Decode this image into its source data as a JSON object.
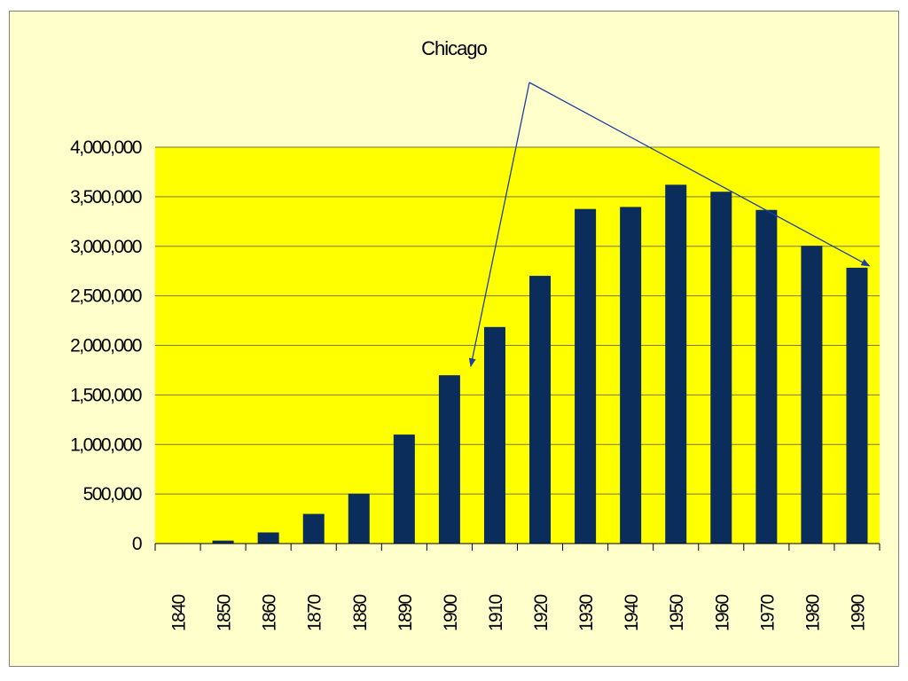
{
  "chart_data": {
    "type": "bar",
    "title": "Chicago",
    "xlabel": "",
    "ylabel": "",
    "categories": [
      "1840",
      "1850",
      "1860",
      "1870",
      "1880",
      "1890",
      "1900",
      "1910",
      "1920",
      "1930",
      "1940",
      "1950",
      "1960",
      "1970",
      "1980",
      "1990"
    ],
    "values": [
      4470,
      29963,
      112172,
      298977,
      503185,
      1099850,
      1698575,
      2185283,
      2701705,
      3376438,
      3396808,
      3620962,
      3550404,
      3366957,
      3005072,
      2783726
    ],
    "ylim": [
      0,
      4000000
    ],
    "yticks": [
      0,
      500000,
      1000000,
      1500000,
      2000000,
      2500000,
      3000000,
      3500000,
      4000000
    ],
    "ytick_labels": [
      "0",
      "500,000",
      "1,000,000",
      "1,500,000",
      "2,000,000",
      "2,500,000",
      "3,000,000",
      "3,500,000",
      "4,000,000"
    ],
    "grid": true,
    "legend": "none",
    "annotations": [
      {
        "type": "arrow",
        "from_category": "peak",
        "to_category": "1900",
        "note": ""
      },
      {
        "type": "arrow",
        "from_category": "peak",
        "to_category": "1990",
        "note": ""
      }
    ],
    "colors": {
      "frame_background": "#ffffcc",
      "plot_background": "#ffff00",
      "bar": "#0a2d5c",
      "gridline": "#7a7a30",
      "arrow": "#1f3f9f"
    }
  }
}
